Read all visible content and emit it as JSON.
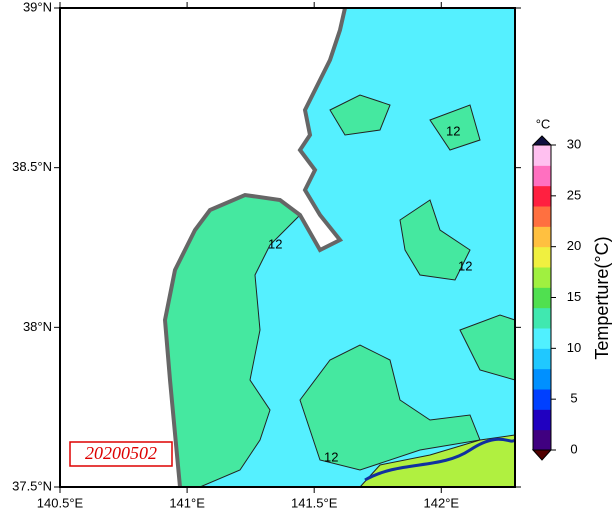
{
  "map": {
    "xlim": [
      140.5,
      142.29
    ],
    "ylim": [
      37.5,
      39
    ],
    "xticks": [
      {
        "value": 140.5,
        "label": "140.5°E"
      },
      {
        "value": 141,
        "label": "141°E"
      },
      {
        "value": 141.5,
        "label": "141.5°E"
      },
      {
        "value": 142,
        "label": "142°E"
      }
    ],
    "yticks": [
      {
        "value": 37.5,
        "label": "37.5°N"
      },
      {
        "value": 38,
        "label": "38°N"
      },
      {
        "value": 38.5,
        "label": "38.5°N"
      },
      {
        "value": 39,
        "label": "39°N"
      }
    ],
    "date_label": "20200502",
    "contour_labels": [
      "12",
      "12",
      "12",
      "12"
    ]
  },
  "colorbar": {
    "unit": "°C",
    "label": "Temperture(°C)",
    "lim": [
      0,
      30
    ],
    "ticks": [
      0,
      5,
      10,
      15,
      20,
      25,
      30
    ],
    "colors": [
      "#400080",
      "#2000c0",
      "#0040ff",
      "#0090ff",
      "#20c8ff",
      "#50f0ff",
      "#40e8b0",
      "#50e050",
      "#a0f040",
      "#f0f040",
      "#ffc040",
      "#ff7040",
      "#ff2040",
      "#ff70c0",
      "#ffc0f0"
    ],
    "under_color": "#500000",
    "over_color": "#101040"
  }
}
